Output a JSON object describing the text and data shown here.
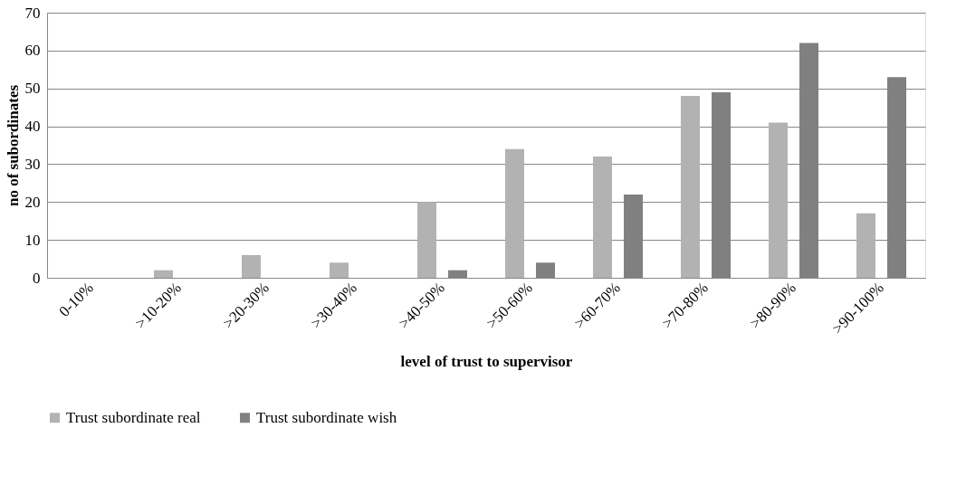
{
  "chart_data": {
    "type": "bar",
    "xlabel": "level of trust to supervisor",
    "ylabel": "no of subordinates",
    "categories": [
      "0-10%",
      ">10-20%",
      ">20-30%",
      ">30-40%",
      ">40-50%",
      ">50-60%",
      ">60-70%",
      ">70-80%",
      ">80-90%",
      ">90-100%"
    ],
    "series": [
      {
        "name": "Trust subordinate real",
        "color": "#b2b2b2",
        "values": [
          0,
          2,
          6,
          4,
          20,
          34,
          32,
          48,
          41,
          17
        ]
      },
      {
        "name": "Trust subordinate wish",
        "color": "#808080",
        "values": [
          0,
          0,
          0,
          0,
          2,
          4,
          22,
          49,
          62,
          53
        ]
      }
    ],
    "ylim": [
      0,
      70
    ],
    "yticks": [
      0,
      10,
      20,
      30,
      40,
      50,
      60,
      70
    ],
    "grid": "y",
    "legend": "bottom"
  }
}
